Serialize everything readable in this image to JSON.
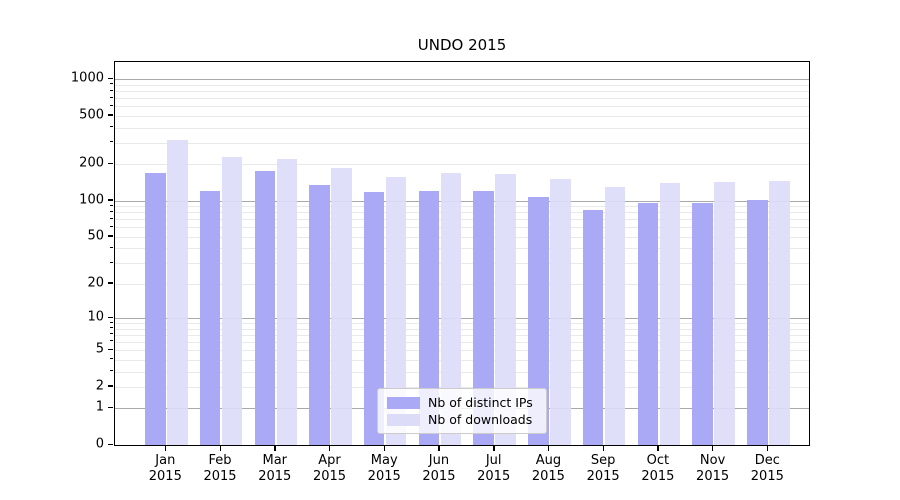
{
  "title": "UNDO 2015",
  "chart_data": {
    "type": "bar",
    "title": "UNDO 2015",
    "scale": "log1p",
    "categories": [
      "Jan",
      "Feb",
      "Mar",
      "Apr",
      "May",
      "Jun",
      "Jul",
      "Aug",
      "Sep",
      "Oct",
      "Nov",
      "Dec"
    ],
    "year": "2015",
    "series": [
      {
        "name": "Nb of distinct IPs",
        "color": "#a9a9f5",
        "values": [
          170,
          120,
          175,
          134,
          118,
          120,
          121,
          108,
          83,
          95,
          95,
          101
        ]
      },
      {
        "name": "Nb of downloads",
        "color": "#dcdcf8",
        "values": [
          315,
          228,
          222,
          188,
          157,
          168,
          165,
          150,
          130,
          140,
          143,
          146
        ]
      }
    ],
    "ytick_values": [
      0,
      1,
      2,
      5,
      10,
      20,
      50,
      100,
      200,
      500,
      1000
    ],
    "ytick_labels": [
      "0",
      "1",
      "2",
      "5",
      "10",
      "20",
      "50",
      "100",
      "200",
      "500",
      "1000"
    ],
    "y_major_gridlines": [
      1,
      10,
      100,
      1000
    ],
    "ylim": [
      0,
      1400
    ],
    "grid": "horizontal",
    "legend_position": "lower center",
    "colors": {
      "major_grid": "#a9a9a9",
      "minor_grid": "#e9e9e9",
      "spine": "#000000"
    }
  }
}
